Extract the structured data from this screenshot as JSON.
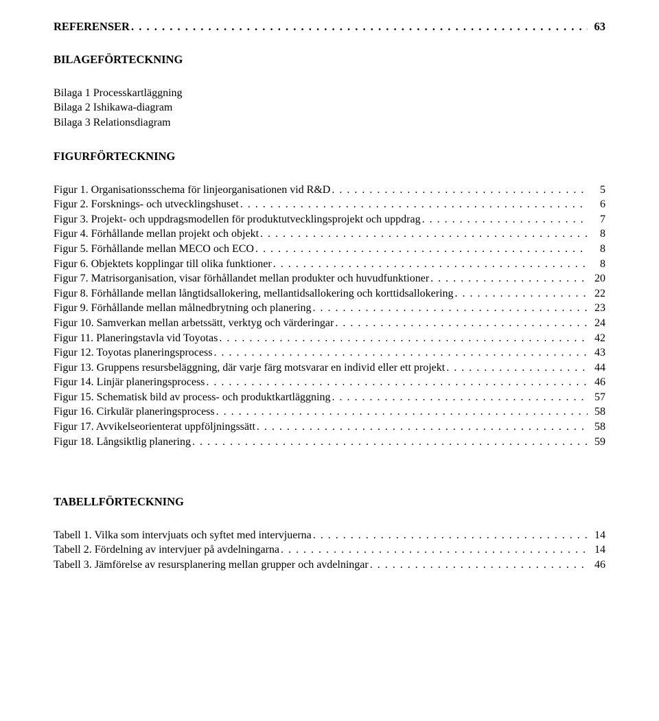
{
  "referenser": {
    "label": "REFERENSER",
    "page": "63"
  },
  "bilageforteckning": {
    "heading": "BILAGEFÖRTECKNING",
    "items": [
      "Bilaga 1 Processkartläggning",
      "Bilaga 2 Ishikawa-diagram",
      "Bilaga 3 Relationsdiagram"
    ]
  },
  "figurforteckning": {
    "heading": "FIGURFÖRTECKNING",
    "entries": [
      {
        "label": "Figur 1. Organisationsschema för linjeorganisationen vid R&D",
        "page": "5"
      },
      {
        "label": "Figur 2. Forsknings- och utvecklingshuset",
        "page": "6"
      },
      {
        "label": "Figur 3. Projekt- och uppdragsmodellen för produktutvecklingsprojekt och uppdrag",
        "page": "7"
      },
      {
        "label": "Figur 4. Förhållande mellan projekt och objekt",
        "page": "8"
      },
      {
        "label": "Figur 5. Förhållande mellan MECO och ECO",
        "page": "8"
      },
      {
        "label": "Figur 6. Objektets kopplingar till olika funktioner",
        "page": "8"
      },
      {
        "label": "Figur 7. Matrisorganisation, visar förhållandet mellan produkter och huvudfunktioner",
        "page": "20"
      },
      {
        "label": "Figur 8. Förhållande mellan långtidsallokering, mellantidsallokering och korttidsallokering",
        "page": "22"
      },
      {
        "label": "Figur 9. Förhållande mellan målnedbrytning och planering",
        "page": "23"
      },
      {
        "label": "Figur 10. Samverkan mellan arbetssätt, verktyg och värderingar",
        "page": "24"
      },
      {
        "label": "Figur 11. Planeringstavla vid Toyotas",
        "page": "42"
      },
      {
        "label": "Figur 12. Toyotas planeringsprocess",
        "page": "43"
      },
      {
        "label": "Figur 13. Gruppens resursbeläggning, där varje färg motsvarar en individ eller ett projekt",
        "page": "44"
      },
      {
        "label": "Figur 14. Linjär planeringsprocess",
        "page": "46"
      },
      {
        "label": "Figur 15. Schematisk bild av process- och produktkartläggning",
        "page": "57"
      },
      {
        "label": "Figur 16. Cirkulär planeringsprocess",
        "page": "58"
      },
      {
        "label": "Figur 17. Avvikelseorienterat uppföljningssätt",
        "page": "58"
      },
      {
        "label": "Figur 18. Långsiktlig planering",
        "page": "59"
      }
    ]
  },
  "tabellforteckning": {
    "heading": "TABELLFÖRTECKNING",
    "entries": [
      {
        "label": "Tabell 1. Vilka som intervjuats och syftet med intervjuerna",
        "page": "14"
      },
      {
        "label": "Tabell 2. Fördelning av intervjuer på avdelningarna",
        "page": "14"
      },
      {
        "label": "Tabell 3. Jämförelse av resursplanering mellan grupper och avdelningar",
        "page": "46"
      }
    ]
  },
  "dots": ". . . . . . . . . . . . . . . . . . . . . . . . . . . . . . . . . . . . . . . . . . . . . . . . . . . . . . . . . . . . . . . . . . . . . . . . . . . . . . . . . . . . . . . . . . . . . . . . . . . . . . . . . . . . . . . . . . . . . . . . . . . . . . . . . . . . . . . . . . . . . . . . . . . . . ."
}
